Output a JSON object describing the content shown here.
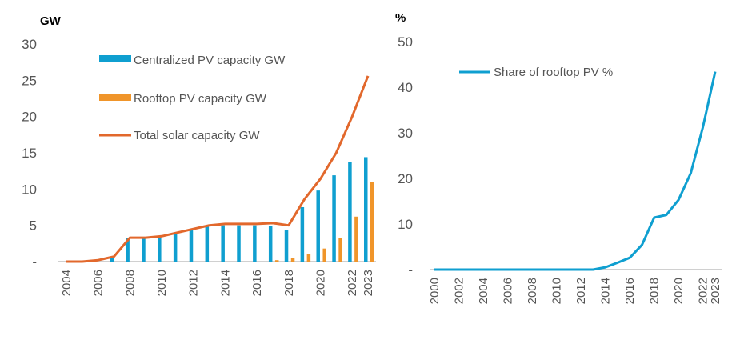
{
  "chart_data": [
    {
      "type": "bar+line",
      "unit_label": "GW",
      "categories": [
        "2004",
        "2005",
        "2006",
        "2007",
        "2008",
        "2009",
        "2010",
        "2011",
        "2012",
        "2013",
        "2014",
        "2015",
        "2016",
        "2017",
        "2018",
        "2019",
        "2020",
        "2021",
        "2022",
        "2023"
      ],
      "x_tick_labels": [
        "2004",
        "2006",
        "2008",
        "2010",
        "2012",
        "2014",
        "2016",
        "2018",
        "2020",
        "2022",
        "2023"
      ],
      "y_tick_labels": [
        "-",
        "5",
        "10",
        "15",
        "20",
        "25",
        "30"
      ],
      "ylim": [
        0,
        30
      ],
      "grid": false,
      "legend_position": "top-left",
      "series": [
        {
          "name": "Centralized PV capacity GW",
          "kind": "bar",
          "color": "#0f9fd0",
          "values": [
            0,
            0,
            0,
            0.5,
            3.3,
            3.3,
            3.5,
            4.0,
            4.4,
            4.8,
            5.0,
            5.0,
            5.0,
            4.9,
            4.3,
            7.5,
            9.8,
            11.9,
            13.7,
            14.4
          ]
        },
        {
          "name": "Rooftop PV capacity GW",
          "kind": "bar",
          "color": "#f0952a",
          "values": [
            0,
            0,
            0,
            0,
            0,
            0,
            0,
            0,
            0,
            0,
            0,
            0,
            0,
            0.2,
            0.5,
            1.0,
            1.8,
            3.2,
            6.2,
            11.0
          ]
        },
        {
          "name": "Total solar capacity GW",
          "kind": "line",
          "color": "#e2682c",
          "values": [
            0,
            0,
            0.2,
            0.7,
            3.3,
            3.3,
            3.5,
            4.0,
            4.5,
            5.0,
            5.2,
            5.2,
            5.2,
            5.3,
            5.0,
            8.6,
            11.4,
            15.0,
            20.0,
            25.6
          ]
        }
      ]
    },
    {
      "type": "line",
      "unit_label": "%",
      "categories": [
        "2000",
        "2001",
        "2002",
        "2003",
        "2004",
        "2005",
        "2006",
        "2007",
        "2008",
        "2009",
        "2010",
        "2011",
        "2012",
        "2013",
        "2014",
        "2015",
        "2016",
        "2017",
        "2018",
        "2019",
        "2020",
        "2021",
        "2022",
        "2023"
      ],
      "x_tick_labels": [
        "2000",
        "2002",
        "2004",
        "2006",
        "2008",
        "2010",
        "2012",
        "2014",
        "2016",
        "2018",
        "2020",
        "2022",
        "2023"
      ],
      "y_tick_labels": [
        "-",
        "10",
        "20",
        "30",
        "40",
        "50"
      ],
      "ylim": [
        0,
        50
      ],
      "grid": false,
      "legend_position": "top-left",
      "series": [
        {
          "name": "Share of rooftop PV %",
          "kind": "line",
          "color": "#0f9fd0",
          "values": [
            0,
            0,
            0,
            0,
            0,
            0,
            0,
            0,
            0,
            0,
            0,
            0,
            0,
            0,
            0.5,
            1.5,
            2.6,
            5.4,
            11.4,
            12.0,
            15.3,
            21.2,
            31.3,
            43.4
          ]
        }
      ]
    }
  ]
}
